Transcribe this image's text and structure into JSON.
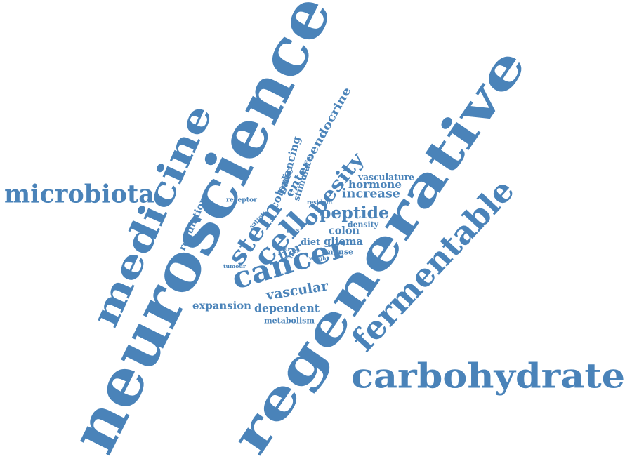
{
  "cloud": {
    "color": "#4a83b9",
    "words": [
      {
        "key": "neuroscience",
        "text": "neuroscience"
      },
      {
        "key": "regenerative",
        "text": "regenerative"
      },
      {
        "key": "medicine",
        "text": "medicine"
      },
      {
        "key": "microbiota",
        "text": "microbiota"
      },
      {
        "key": "carbohydrate",
        "text": "carbohydrate"
      },
      {
        "key": "fermentable",
        "text": "fermentable"
      },
      {
        "key": "cancer",
        "text": "cancer"
      },
      {
        "key": "stem",
        "text": "stem"
      },
      {
        "key": "cell",
        "text": "cell"
      },
      {
        "key": "obesity",
        "text": "obesity"
      },
      {
        "key": "peptide",
        "text": "peptide"
      },
      {
        "key": "increase",
        "text": "increase"
      },
      {
        "key": "hormone",
        "text": "hormone"
      },
      {
        "key": "vasculature",
        "text": "vasculature"
      },
      {
        "key": "enteroendocrine",
        "text": "enteroendocrine"
      },
      {
        "key": "balancing",
        "text": "balancing"
      },
      {
        "key": "colonic",
        "text": "colonic"
      },
      {
        "key": "stimulate",
        "text": "stimulate"
      },
      {
        "key": "receptor",
        "text": "receptor"
      },
      {
        "key": "regulation",
        "text": "regulation"
      },
      {
        "key": "satiety",
        "text": "satiety"
      },
      {
        "key": "resident",
        "text": "resident"
      },
      {
        "key": "density",
        "text": "density"
      },
      {
        "key": "colon",
        "text": "colon"
      },
      {
        "key": "gscs",
        "text": "gscs"
      },
      {
        "key": "diet",
        "text": "diet"
      },
      {
        "key": "glioma",
        "text": "glioma"
      },
      {
        "key": "ffar",
        "text": "ffar"
      },
      {
        "key": "mouse",
        "text": "mouse"
      },
      {
        "key": "body",
        "text": "body"
      },
      {
        "key": "fatty",
        "text": "fatty"
      },
      {
        "key": "effect",
        "text": "effect"
      },
      {
        "key": "weight",
        "text": "weight"
      },
      {
        "key": "tumour",
        "text": "tumour"
      },
      {
        "key": "vascular",
        "text": "vascular"
      },
      {
        "key": "expansion",
        "text": "expansion"
      },
      {
        "key": "dependent",
        "text": "dependent"
      },
      {
        "key": "metabolism",
        "text": "metabolism"
      }
    ]
  }
}
